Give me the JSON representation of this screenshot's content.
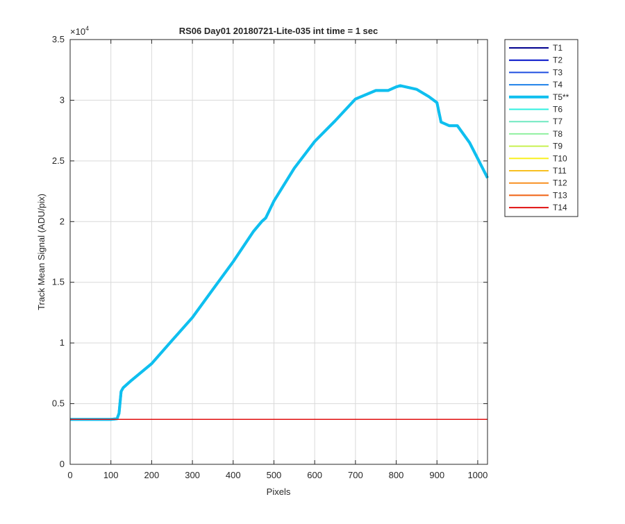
{
  "chart_data": {
    "type": "line",
    "title": "RS06 Day01 20180721-Lite-035 int time = 1 sec",
    "xlabel": "Pixels",
    "ylabel": "Track Mean Signal (ADU/pix)",
    "y_multiplier": "×10",
    "y_exponent": "4",
    "xlim": [
      0,
      1024
    ],
    "ylim": [
      0,
      35000
    ],
    "x_ticks": [
      0,
      100,
      200,
      300,
      400,
      500,
      600,
      700,
      800,
      900,
      1000
    ],
    "y_ticks": [
      0,
      5000,
      10000,
      15000,
      20000,
      25000,
      30000,
      35000
    ],
    "x_tick_labels": [
      "0",
      "100",
      "200",
      "300",
      "400",
      "500",
      "600",
      "700",
      "800",
      "900",
      "1000"
    ],
    "y_tick_labels": [
      "0",
      "0.5",
      "1",
      "1.5",
      "2",
      "2.5",
      "3",
      "3.5"
    ],
    "grid": true,
    "legend_position": "outside-right",
    "baseline_value": 3700,
    "series": [
      {
        "name": "T1",
        "color": "#00008f",
        "highlight": false
      },
      {
        "name": "T2",
        "color": "#0010c8",
        "highlight": false
      },
      {
        "name": "T3",
        "color": "#1f4ee0",
        "highlight": false
      },
      {
        "name": "T4",
        "color": "#1e80e8",
        "highlight": false
      },
      {
        "name": "T5**",
        "color": "#0fbfef",
        "highlight": true,
        "x": [
          0,
          100,
          115,
          120,
          125,
          130,
          150,
          200,
          250,
          300,
          350,
          400,
          450,
          470,
          480,
          500,
          550,
          600,
          650,
          700,
          750,
          780,
          800,
          810,
          850,
          880,
          900,
          910,
          930,
          950,
          980,
          1000,
          1024
        ],
        "y": [
          3700,
          3700,
          3750,
          4200,
          6000,
          6300,
          6900,
          8300,
          10200,
          12100,
          14400,
          16700,
          19200,
          20000,
          20300,
          21700,
          24400,
          26600,
          28300,
          30100,
          30800,
          30800,
          31100,
          31200,
          30900,
          30300,
          29800,
          28200,
          27900,
          27900,
          26500,
          25200,
          23600
        ]
      },
      {
        "name": "T6",
        "color": "#2ff0e0",
        "highlight": false
      },
      {
        "name": "T7",
        "color": "#6fe8c0",
        "highlight": false
      },
      {
        "name": "T8",
        "color": "#8ff0a0",
        "highlight": false
      },
      {
        "name": "T9",
        "color": "#c8f050",
        "highlight": false
      },
      {
        "name": "T10",
        "color": "#f8f020",
        "highlight": false
      },
      {
        "name": "T11",
        "color": "#f8c020",
        "highlight": false
      },
      {
        "name": "T12",
        "color": "#f89020",
        "highlight": false
      },
      {
        "name": "T13",
        "color": "#f06010",
        "highlight": false
      },
      {
        "name": "T14",
        "color": "#e01010",
        "highlight": false
      }
    ]
  }
}
